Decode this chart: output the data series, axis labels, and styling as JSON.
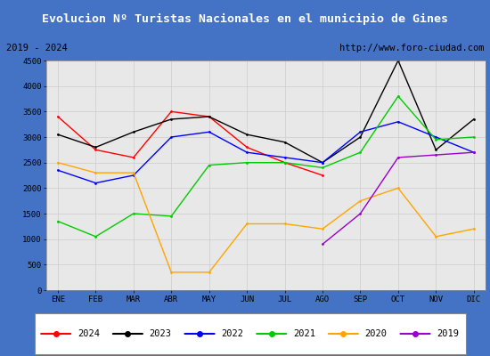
{
  "title": "Evolucion Nº Turistas Nacionales en el municipio de Gines",
  "subtitle_left": "2019 - 2024",
  "subtitle_right": "http://www.foro-ciudad.com",
  "months": [
    "ENE",
    "FEB",
    "MAR",
    "ABR",
    "MAY",
    "JUN",
    "JUL",
    "AGO",
    "SEP",
    "OCT",
    "NOV",
    "DIC"
  ],
  "ylim": [
    0,
    4500
  ],
  "yticks": [
    0,
    500,
    1000,
    1500,
    2000,
    2500,
    3000,
    3500,
    4000,
    4500
  ],
  "series": {
    "2024": {
      "color": "#ff0000",
      "data": [
        3400,
        2750,
        2600,
        3500,
        3400,
        2800,
        2500,
        2250,
        null,
        null,
        null,
        null
      ]
    },
    "2023": {
      "color": "#000000",
      "data": [
        3050,
        2800,
        3100,
        3350,
        3400,
        3050,
        2900,
        2500,
        3000,
        4500,
        2750,
        3350
      ]
    },
    "2022": {
      "color": "#0000ff",
      "data": [
        2350,
        2100,
        2250,
        3000,
        3100,
        2700,
        2600,
        2500,
        3100,
        3300,
        3000,
        2700
      ]
    },
    "2021": {
      "color": "#00cc00",
      "data": [
        1350,
        1050,
        1500,
        1450,
        2450,
        2500,
        2500,
        2400,
        2700,
        3800,
        2950,
        3000
      ]
    },
    "2020": {
      "color": "#ffa500",
      "data": [
        2500,
        2300,
        2300,
        350,
        350,
        1300,
        1300,
        1200,
        1750,
        2000,
        1050,
        1200
      ]
    },
    "2019": {
      "color": "#9900cc",
      "data": [
        null,
        null,
        null,
        null,
        null,
        null,
        null,
        900,
        1500,
        2600,
        2650,
        2700
      ]
    }
  },
  "background_color": "#e8e8e8",
  "title_bg_color": "#4472c4",
  "title_color": "#ffffff",
  "header_bg_color": "#ffffff",
  "plot_bg_color": "#e8e8e8",
  "grid_color": "#cccccc"
}
